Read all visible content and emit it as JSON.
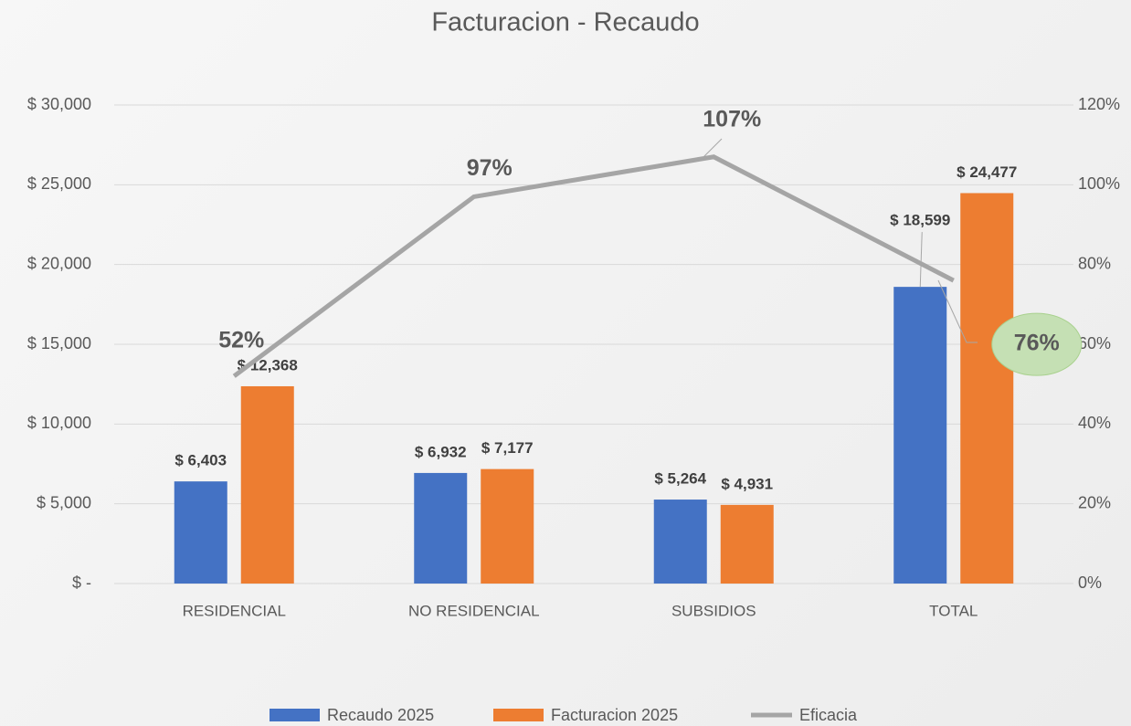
{
  "chart_data": {
    "type": "bar",
    "title": "Facturacion - Recaudo",
    "categories": [
      "RESIDENCIAL",
      "NO RESIDENCIAL",
      "SUBSIDIOS",
      "TOTAL"
    ],
    "series": [
      {
        "name": "Recaudo 2025",
        "color": "#4472c4",
        "values": [
          6403,
          6932,
          5264,
          18599
        ],
        "value_labels": [
          "$ 6,403",
          "$ 6,932",
          "$ 5,264",
          "$ 18,599"
        ]
      },
      {
        "name": "Facturacion 2025",
        "color": "#ed7d31",
        "values": [
          12368,
          7177,
          4931,
          24477
        ],
        "value_labels": [
          "$ 12,368",
          "$ 7,177",
          "$ 4,931",
          "$ 24,477"
        ]
      },
      {
        "name": "Eficacia",
        "color": "#a5a5a5",
        "type": "line",
        "axis": "y2",
        "values": [
          52,
          97,
          107,
          76
        ],
        "value_labels": [
          "52%",
          "97%",
          "107%",
          "76%"
        ]
      }
    ],
    "ylim": [
      0,
      30000
    ],
    "yticks": [
      {
        "value": 0,
        "label": "$ -"
      },
      {
        "value": 5000,
        "label": "$ 5,000"
      },
      {
        "value": 10000,
        "label": "$ 10,000"
      },
      {
        "value": 15000,
        "label": "$ 15,000"
      },
      {
        "value": 20000,
        "label": "$ 20,000"
      },
      {
        "value": 25000,
        "label": "$ 25,000"
      },
      {
        "value": 30000,
        "label": "$ 30,000"
      }
    ],
    "y2lim": [
      0,
      120
    ],
    "y2ticks": [
      {
        "value": 0,
        "label": "0%"
      },
      {
        "value": 20,
        "label": "20%"
      },
      {
        "value": 40,
        "label": "40%"
      },
      {
        "value": 60,
        "label": "60%"
      },
      {
        "value": 80,
        "label": "80%"
      },
      {
        "value": 100,
        "label": "100%"
      },
      {
        "value": 120,
        "label": "120%"
      }
    ],
    "grid": true,
    "legend": "bottom"
  }
}
